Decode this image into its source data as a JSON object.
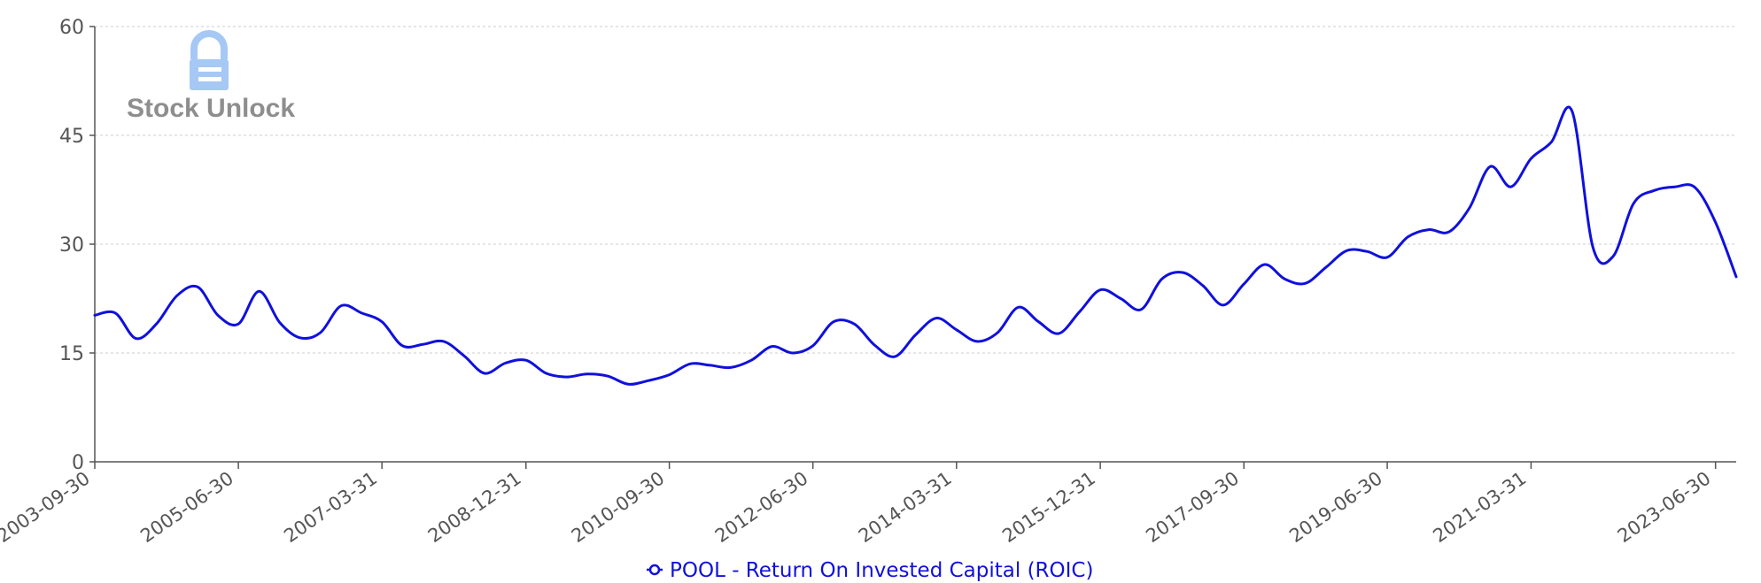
{
  "watermark": {
    "text": "Stock Unlock",
    "icon": "lock-icon",
    "icon_color": "#a6c8f5"
  },
  "colors": {
    "line": "#1010dd",
    "axis": "#555555",
    "grid": "#cccccc",
    "label": "#555555"
  },
  "chart_data": {
    "type": "line",
    "title": "",
    "xlabel": "",
    "ylabel": "",
    "ylim": [
      0,
      60
    ],
    "yticks": [
      0,
      15,
      30,
      45,
      60
    ],
    "grid": {
      "horizontal": true,
      "vertical": false
    },
    "legend_position": "bottom-center",
    "xtick_labels": [
      "2003-09-30",
      "2005-06-30",
      "2007-03-31",
      "2008-12-31",
      "2010-09-30",
      "2012-06-30",
      "2014-03-31",
      "2015-12-31",
      "2017-09-30",
      "2019-06-30",
      "2021-03-31",
      "2023-06-30"
    ],
    "series": [
      {
        "name": "POOL - Return On Invested Capital (ROIC)",
        "color": "#1010dd",
        "x": [
          "2003-09-30",
          "2003-12-31",
          "2004-03-31",
          "2004-06-30",
          "2004-09-30",
          "2004-12-31",
          "2005-03-31",
          "2005-06-30",
          "2005-09-30",
          "2005-12-31",
          "2006-03-31",
          "2006-06-30",
          "2006-09-30",
          "2006-12-31",
          "2007-03-31",
          "2007-06-30",
          "2007-09-30",
          "2007-12-31",
          "2008-03-31",
          "2008-06-30",
          "2008-09-30",
          "2008-12-31",
          "2009-03-31",
          "2009-06-30",
          "2009-09-30",
          "2009-12-31",
          "2010-03-31",
          "2010-06-30",
          "2010-09-30",
          "2010-12-31",
          "2011-03-31",
          "2011-06-30",
          "2011-09-30",
          "2011-12-31",
          "2012-03-31",
          "2012-06-30",
          "2012-09-30",
          "2012-12-31",
          "2013-03-31",
          "2013-06-30",
          "2013-09-30",
          "2013-12-31",
          "2014-03-31",
          "2014-06-30",
          "2014-09-30",
          "2014-12-31",
          "2015-03-31",
          "2015-06-30",
          "2015-09-30",
          "2015-12-31",
          "2016-03-31",
          "2016-06-30",
          "2016-09-30",
          "2016-12-31",
          "2017-03-31",
          "2017-06-30",
          "2017-09-30",
          "2017-12-31",
          "2018-03-31",
          "2018-06-30",
          "2018-09-30",
          "2018-12-31",
          "2019-03-31",
          "2019-06-30",
          "2019-09-30",
          "2019-12-31",
          "2020-03-31",
          "2020-06-30",
          "2020-09-30",
          "2020-12-31",
          "2021-03-31",
          "2021-06-30",
          "2021-09-30",
          "2021-12-31",
          "2022-03-31",
          "2022-06-30",
          "2022-09-30",
          "2022-12-31",
          "2023-03-31",
          "2023-06-30",
          "2023-09-30"
        ],
        "values": [
          20.2,
          20.5,
          17.0,
          19.0,
          22.9,
          24.1,
          20.2,
          19.0,
          23.5,
          19.2,
          17.1,
          17.8,
          21.5,
          20.5,
          19.3,
          16.0,
          16.2,
          16.6,
          14.6,
          12.2,
          13.6,
          14.0,
          12.2,
          11.7,
          12.1,
          11.8,
          10.7,
          11.2,
          12.0,
          13.5,
          13.3,
          13.0,
          14.0,
          15.9,
          15.0,
          16.0,
          19.3,
          19.0,
          16.1,
          14.5,
          17.5,
          19.8,
          18.2,
          16.6,
          17.8,
          21.3,
          19.3,
          17.7,
          20.7,
          23.7,
          22.5,
          21.0,
          25.2,
          26.1,
          24.3,
          21.6,
          24.5,
          27.2,
          25.2,
          24.6,
          26.8,
          29.1,
          29.0,
          28.2,
          31.0,
          32.0,
          31.7,
          35.0,
          40.7,
          37.9,
          41.8,
          44.1,
          48.3,
          29.6,
          28.3,
          35.6,
          37.4,
          37.9,
          37.8,
          33.0,
          25.5
        ]
      }
    ]
  }
}
